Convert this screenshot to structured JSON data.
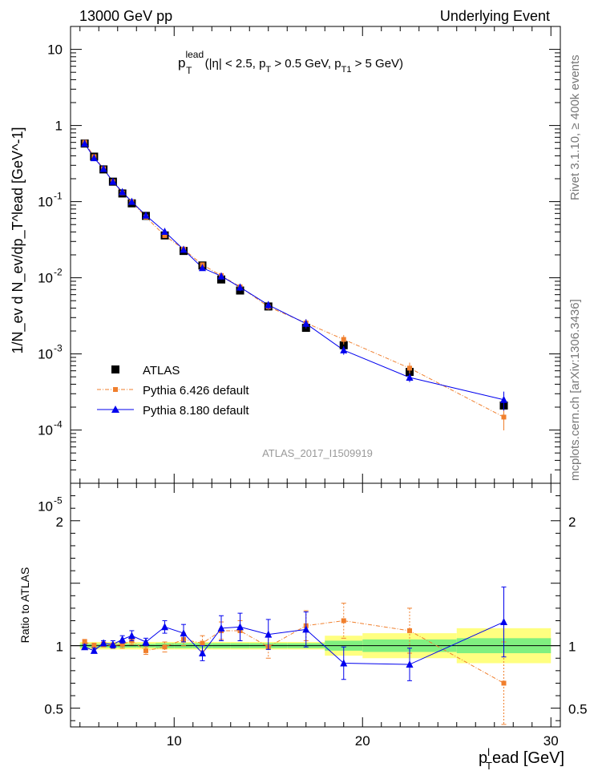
{
  "header": {
    "left": "13000 GeV pp",
    "right": "Underlying Event"
  },
  "side": {
    "rivet": "Rivet 3.1.10, ≥ 400k events",
    "mcplots": "mcplots.cern.ch [arXiv:1306.3436]"
  },
  "chart_data": {
    "type": "scatter",
    "title": "p_T^lead (|η| < 2.5, p_T > 0.5 GeV, p_T1 > 5 GeV)",
    "title_parts": {
      "p": "p",
      "sub_T": "T",
      "sup_lead": "lead",
      "cut1": " (|η| < 2.5, p",
      "cut2": " > 0.5 GeV, p",
      "sub_T1": "T1",
      "cut3": " > 5 GeV)"
    },
    "ylabel": "1/N_ev d N_ev/dp_T^lead [GeV^-1]",
    "xlabel": "p_T^lead [GeV]",
    "xlabel_parts": {
      "main": "p",
      "sup": "l",
      "sub": "T",
      "rest": "ead [GeV]"
    },
    "ratio_ylabel": "Ratio to ATLAS",
    "analysis_id": "ATLAS_2017_I1509919",
    "xlim": [
      4.5,
      30.5
    ],
    "ylim": [
      2e-05,
      20
    ],
    "ratio_ylim": [
      0.35,
      2.3
    ],
    "x_ticks": [
      "10",
      "20",
      "30"
    ],
    "y_tick_labels": {
      "10": "10",
      "1": "1"
    },
    "ratio_ticks": [
      "0.5",
      "1",
      "2"
    ],
    "x": [
      5.25,
      5.75,
      6.25,
      6.75,
      7.25,
      7.75,
      8.5,
      9.5,
      10.5,
      11.5,
      12.5,
      13.5,
      15.0,
      17.0,
      19.0,
      22.5,
      27.5
    ],
    "x_bins": [
      [
        5.0,
        5.5
      ],
      [
        5.5,
        6.0
      ],
      [
        6.0,
        6.5
      ],
      [
        6.5,
        7.0
      ],
      [
        7.0,
        7.5
      ],
      [
        7.5,
        8.0
      ],
      [
        8.0,
        9.0
      ],
      [
        9.0,
        10.0
      ],
      [
        10.0,
        11.0
      ],
      [
        11.0,
        12.0
      ],
      [
        12.0,
        13.0
      ],
      [
        13.0,
        14.0
      ],
      [
        14.0,
        16.0
      ],
      [
        16.0,
        18.0
      ],
      [
        18.0,
        20.0
      ],
      [
        20.0,
        25.0
      ],
      [
        25.0,
        30.0
      ]
    ],
    "series": [
      {
        "name": "ATLAS",
        "legend": "ATLAS",
        "color": "#000000",
        "marker": "square",
        "values": [
          0.58,
          0.39,
          0.265,
          0.183,
          0.128,
          0.095,
          0.065,
          0.036,
          0.0225,
          0.0145,
          0.0095,
          0.0068,
          0.0042,
          0.0022,
          0.0013,
          0.00058,
          0.00021
        ]
      },
      {
        "name": "Pythia 6.426 default",
        "legend": "Pythia 6.426 default",
        "color": "#f07f2d",
        "marker": "square-small",
        "values": [
          0.6,
          0.39,
          0.27,
          0.183,
          0.13,
          0.099,
          0.0628,
          0.0358,
          0.0238,
          0.0148,
          0.0107,
          0.0076,
          0.00416,
          0.00255,
          0.00155,
          0.00065,
          0.000148
        ],
        "ratio": [
          1.03,
          1.0,
          1.01,
          1.0,
          1.01,
          1.04,
          0.96,
          0.99,
          1.05,
          1.02,
          1.12,
          1.12,
          0.99,
          1.16,
          1.2,
          1.12,
          0.7
        ],
        "ratio_err": [
          0.02,
          0.02,
          0.02,
          0.02,
          0.03,
          0.03,
          0.03,
          0.04,
          0.05,
          0.06,
          0.07,
          0.08,
          0.09,
          0.12,
          0.14,
          0.18,
          0.33
        ]
      },
      {
        "name": "Pythia 8.180 default",
        "legend": "Pythia 8.180 default",
        "color": "#0000ee",
        "marker": "triangle",
        "values": [
          0.58,
          0.375,
          0.27,
          0.183,
          0.134,
          0.1,
          0.066,
          0.0404,
          0.0235,
          0.0135,
          0.0105,
          0.0075,
          0.0044,
          0.0025,
          0.00112,
          0.00049,
          0.00025
        ],
        "ratio": [
          0.99,
          0.96,
          1.02,
          1.01,
          1.05,
          1.08,
          1.03,
          1.15,
          1.1,
          0.94,
          1.14,
          1.15,
          1.09,
          1.13,
          0.86,
          0.85,
          1.19
        ],
        "ratio_err": [
          0.02,
          0.02,
          0.02,
          0.03,
          0.03,
          0.04,
          0.03,
          0.05,
          0.07,
          0.06,
          0.1,
          0.11,
          0.12,
          0.14,
          0.13,
          0.13,
          0.28
        ]
      }
    ],
    "data_rel_err": [
      0.015,
      0.015,
      0.015,
      0.015,
      0.015,
      0.015,
      0.015,
      0.02,
      0.02,
      0.025,
      0.025,
      0.03,
      0.03,
      0.03,
      0.04,
      0.05,
      0.07
    ],
    "bands": {
      "stat_green": [
        0.015,
        0.015,
        0.015,
        0.015,
        0.015,
        0.015,
        0.015,
        0.02,
        0.02,
        0.02,
        0.02,
        0.02,
        0.02,
        0.02,
        0.04,
        0.05,
        0.06
      ],
      "total_yellow": [
        0.03,
        0.03,
        0.03,
        0.03,
        0.03,
        0.03,
        0.03,
        0.03,
        0.03,
        0.03,
        0.03,
        0.03,
        0.03,
        0.03,
        0.08,
        0.1,
        0.14
      ]
    }
  }
}
